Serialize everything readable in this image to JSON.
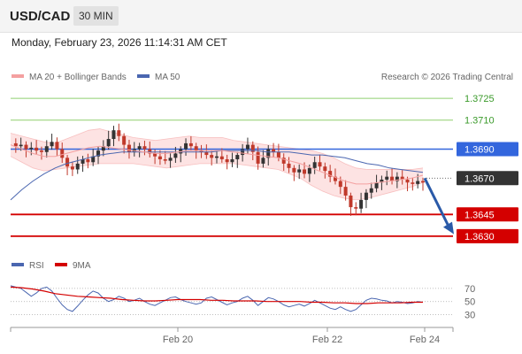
{
  "header": {
    "symbol": "USD/CAD",
    "timeframe": "30 MIN",
    "datetime": "Monday, February 23, 2026 11:14:31 AM CET"
  },
  "colors": {
    "price_up": "#333333",
    "price_down": "#c0392b",
    "bollinger": "#f4a0a0",
    "ma50": "#4a66b0",
    "resistance": "#8fcf6f",
    "support": "#d40000",
    "pivot": "#3366dd",
    "arrow": "#2a5aa8"
  },
  "chart_data": [
    {
      "type": "candlestick",
      "legend": [
        {
          "name": "MA 20 + Bollinger Bands",
          "color": "#f4a0a0"
        },
        {
          "name": "MA 50",
          "color": "#4a66b0"
        }
      ],
      "copyright": "Research © 2026 Trading Central",
      "y_labels": [
        "1.3725",
        "1.3710",
        "1.3690",
        "1.3670",
        "1.3645",
        "1.3630"
      ],
      "ylim": [
        1.3622,
        1.3733
      ],
      "x_labels": [
        "Feb 20",
        "Feb 22",
        "Feb 24"
      ],
      "levels": [
        {
          "value": 1.3725,
          "label": "1.3725",
          "kind": "resistance"
        },
        {
          "value": 1.371,
          "label": "1.3710",
          "kind": "resistance"
        },
        {
          "value": 1.369,
          "label": "1.3690",
          "kind": "pivot"
        },
        {
          "value": 1.367,
          "label": "1.3670",
          "kind": "last"
        },
        {
          "value": 1.3645,
          "label": "1.3645",
          "kind": "support"
        },
        {
          "value": 1.363,
          "label": "1.3630",
          "kind": "support"
        }
      ],
      "forecast": {
        "from": 1.367,
        "to": 1.3632
      },
      "price_path": [
        1.3694,
        1.3692,
        1.3693,
        1.369,
        1.3691,
        1.3689,
        1.3688,
        1.3692,
        1.3695,
        1.369,
        1.3684,
        1.3678,
        1.3676,
        1.368,
        1.3683,
        1.3681,
        1.3685,
        1.3689,
        1.3692,
        1.3697,
        1.3703,
        1.3699,
        1.3693,
        1.3688,
        1.369,
        1.3692,
        1.369,
        1.3687,
        1.3685,
        1.3683,
        1.3682,
        1.3684,
        1.3687,
        1.369,
        1.3694,
        1.3692,
        1.3689,
        1.3688,
        1.3686,
        1.3684,
        1.3685,
        1.3683,
        1.3681,
        1.3683,
        1.3686,
        1.369,
        1.3693,
        1.3688,
        1.368,
        1.3684,
        1.369,
        1.3688,
        1.3684,
        1.368,
        1.3677,
        1.3674,
        1.3676,
        1.3673,
        1.3677,
        1.3681,
        1.3678,
        1.3675,
        1.3671,
        1.3668,
        1.3664,
        1.3658,
        1.365,
        1.3649,
        1.3655,
        1.366,
        1.3663,
        1.3667,
        1.3669,
        1.3671,
        1.3668,
        1.3671,
        1.3669,
        1.3667,
        1.3666,
        1.3668,
        1.3667
      ],
      "ma50": [
        1.3655,
        1.3662,
        1.3668,
        1.3673,
        1.3677,
        1.368,
        1.3682,
        1.3684,
        1.3686,
        1.3687,
        1.3688,
        1.3688,
        1.3688,
        1.3688,
        1.3688,
        1.3688,
        1.3688,
        1.3688,
        1.3688,
        1.3689,
        1.3689,
        1.3689,
        1.3689,
        1.3688,
        1.3688,
        1.3688,
        1.3687,
        1.3686,
        1.3686,
        1.3685,
        1.3684,
        1.3682,
        1.368,
        1.3679,
        1.3677,
        1.3676,
        1.3675,
        1.3674
      ],
      "ma20": [
        1.3693,
        1.369,
        1.3687,
        1.3685,
        1.3685,
        1.3687,
        1.3689,
        1.3691,
        1.3692,
        1.3691,
        1.369,
        1.3689,
        1.3688,
        1.3687,
        1.3687,
        1.3688,
        1.3689,
        1.3689,
        1.3689,
        1.3689,
        1.3688,
        1.3687,
        1.3686,
        1.3685,
        1.3684,
        1.3682,
        1.368,
        1.3677,
        1.3674,
        1.3671,
        1.3668,
        1.3666,
        1.3666,
        1.3667,
        1.3668,
        1.3669,
        1.367,
        1.3672
      ],
      "bb_width": [
        0.0008,
        0.0009,
        0.001,
        0.001,
        0.0009,
        0.001,
        0.0011,
        0.0012,
        0.0012,
        0.0011,
        0.001,
        0.0009,
        0.0009,
        0.0009,
        0.001,
        0.001,
        0.001,
        0.0009,
        0.0009,
        0.0009,
        0.0008,
        0.0008,
        0.0008,
        0.0008,
        0.0008,
        0.0009,
        0.001,
        0.0012,
        0.0013,
        0.0013,
        0.0012,
        0.0011,
        0.001,
        0.0009,
        0.0008,
        0.0007,
        0.0006,
        0.0005
      ]
    },
    {
      "type": "line",
      "legend": [
        {
          "name": "RSI",
          "color": "#4a66b0"
        },
        {
          "name": "9MA",
          "color": "#d40000"
        }
      ],
      "y_labels": [
        "70",
        "50",
        "30"
      ],
      "ylim": [
        16,
        86
      ],
      "rsi": [
        74,
        72,
        70,
        64,
        58,
        63,
        70,
        72,
        66,
        55,
        45,
        38,
        35,
        43,
        52,
        60,
        66,
        63,
        55,
        50,
        53,
        58,
        55,
        50,
        52,
        55,
        50,
        46,
        44,
        48,
        52,
        56,
        57,
        53,
        50,
        48,
        46,
        48,
        55,
        57,
        53,
        49,
        45,
        48,
        50,
        55,
        58,
        52,
        44,
        50,
        56,
        54,
        50,
        45,
        42,
        44,
        46,
        43,
        47,
        52,
        48,
        44,
        40,
        38,
        42,
        38,
        35,
        38,
        45,
        52,
        55,
        54,
        52,
        51,
        48,
        50,
        49,
        47,
        48,
        50,
        49
      ],
      "rsi_ma": [
        72,
        71,
        69,
        66,
        62,
        60,
        58,
        57,
        56,
        55,
        53,
        52,
        51,
        51,
        52,
        53,
        53,
        53,
        52,
        52,
        51,
        51,
        51,
        50,
        50,
        50,
        50,
        49,
        49,
        48,
        48,
        47,
        47,
        48,
        48,
        48,
        49,
        49
      ]
    }
  ]
}
